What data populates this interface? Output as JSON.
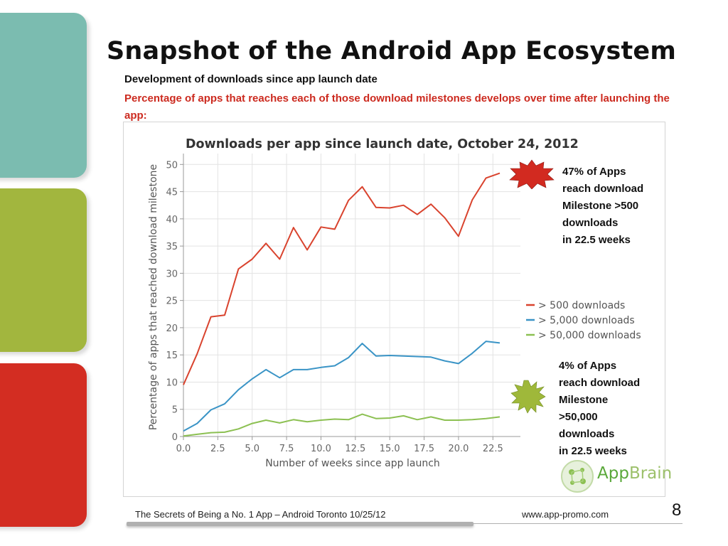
{
  "slide": {
    "title": "Snapshot of the Android App Ecosystem",
    "subtitle": "Development of downloads since app launch date",
    "subtitle_red": "Percentage of apps that reaches each of those download milestones develops over time after launching the app:",
    "callout_top": "47% of Apps\nreach download\nMilestone >500\ndownloads\nin 22.5 weeks",
    "callout_bottom": "4% of Apps\nreach download\nMilestone\n>50,000\ndownloads\nin 22.5 weeks",
    "footer_left": "The Secrets of Being a No. 1 App – Android Toronto   10/25/12",
    "footer_url": "www.app-promo.com",
    "page_number": "8",
    "logo_text_a": "App",
    "logo_text_b": "Brain",
    "colors": {
      "tab_teal": "#7bbcb0",
      "tab_green": "#a2b63e",
      "tab_red": "#d32d22",
      "accent_red": "#cc2a1f"
    }
  },
  "chart_data": {
    "type": "line",
    "title": "Downloads per app since launch date, October 24, 2012",
    "xlabel": "Number of weeks since app launch",
    "ylabel": "Percentage of apps that reached download milestone",
    "xlim": [
      0,
      24.5
    ],
    "ylim": [
      0,
      52
    ],
    "xticks": [
      0.0,
      2.5,
      5.0,
      7.5,
      10.0,
      12.5,
      15.0,
      17.5,
      20.0,
      22.5
    ],
    "xtick_labels": [
      "0.0",
      "2.5",
      "5.0",
      "7.5",
      "10.0",
      "12.5",
      "15.0",
      "17.5",
      "20.0",
      "22.5"
    ],
    "yticks": [
      0,
      5,
      10,
      15,
      20,
      25,
      30,
      35,
      40,
      45,
      50
    ],
    "ytick_labels": [
      "0",
      "5",
      "10",
      "15",
      "20",
      "25",
      "30",
      "35",
      "40",
      "45",
      "50"
    ],
    "grid": true,
    "legend_position": "right-middle",
    "x": [
      0,
      1,
      2,
      3,
      4,
      5,
      6,
      7,
      8,
      9,
      10,
      11,
      12,
      13,
      14,
      15,
      16,
      17,
      18,
      19,
      20,
      21,
      22,
      23
    ],
    "series": [
      {
        "name": "> 500 downloads",
        "color": "#d9432e",
        "values": [
          9.5,
          15.2,
          22.0,
          22.3,
          30.8,
          32.6,
          35.5,
          32.6,
          38.4,
          34.3,
          38.5,
          38.1,
          43.4,
          45.9,
          42.1,
          42.0,
          42.5,
          40.8,
          42.7,
          40.2,
          36.8,
          43.5,
          47.5,
          48.4
        ]
      },
      {
        "name": "> 5,000 downloads",
        "color": "#3a94c6",
        "values": [
          1.0,
          2.4,
          4.9,
          6.0,
          8.6,
          10.6,
          12.3,
          10.8,
          12.3,
          12.3,
          12.7,
          13.0,
          14.5,
          17.1,
          14.8,
          14.9,
          14.8,
          14.7,
          14.6,
          13.9,
          13.4,
          15.3,
          17.5,
          17.2
        ]
      },
      {
        "name": "> 50,000 downloads",
        "color": "#8cc052",
        "values": [
          0.1,
          0.4,
          0.7,
          0.8,
          1.4,
          2.4,
          3.0,
          2.5,
          3.1,
          2.7,
          3.0,
          3.2,
          3.1,
          4.1,
          3.3,
          3.4,
          3.8,
          3.1,
          3.6,
          3.0,
          3.0,
          3.1,
          3.3,
          3.6
        ]
      }
    ]
  }
}
